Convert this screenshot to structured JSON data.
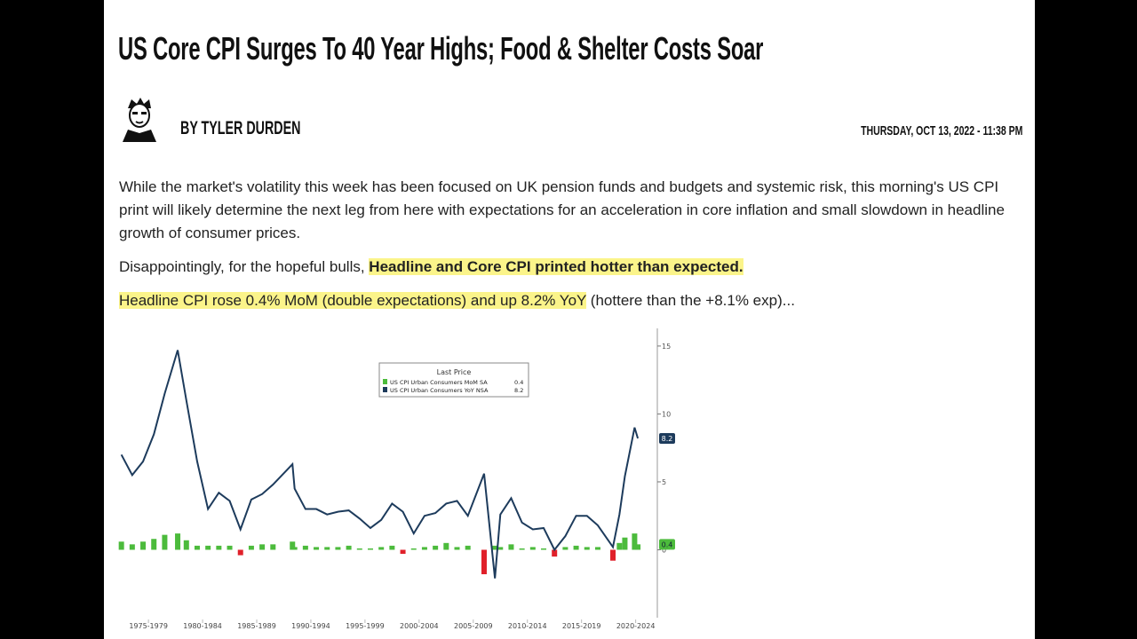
{
  "header": {
    "title": "US Core CPI Surges To 40 Year Highs; Food & Shelter Costs Soar",
    "author": "BY TYLER DURDEN",
    "date": "THURSDAY, OCT 13, 2022 - 11:38 PM"
  },
  "body": {
    "paragraphs": [
      {
        "parts": [
          "While the market's volatility this week has been focused on UK pension funds and budgets and systemic risk, this morning's US CPI print will likely determine the next leg from here with expectations for an acceleration in core inflation and small slowdown in headline growth of consumer prices."
        ]
      },
      {
        "parts": [
          "Disappointingly, for the hopeful bulls, ",
          "Headline and Core CPI printed hotter than expected."
        ]
      },
      {
        "parts": [
          "Headline CPI rose 0.4% MoM (double expectations) and up 8.2% YoY",
          " (hottere than the +8.1% exp)..."
        ]
      }
    ]
  },
  "chart_data": {
    "type": "combo",
    "legend_title": "Last Price",
    "x": [
      1975,
      1976,
      1977,
      1978,
      1979,
      1980.2,
      1981,
      1982,
      1983,
      1984,
      1985,
      1986,
      1987,
      1988,
      1989,
      1990.8,
      1991,
      1992,
      1993,
      1994,
      1995,
      1996,
      1997,
      1998,
      1999,
      2000,
      2001,
      2002,
      2003,
      2004,
      2005,
      2006,
      2007,
      2008.5,
      2009.5,
      2010,
      2011,
      2012,
      2013,
      2014,
      2015,
      2016,
      2017,
      2018,
      2019,
      2020.4,
      2021,
      2021.5,
      2022.4,
      2022.7
    ],
    "series": [
      {
        "name": "US CPI Urban Consumers MoM SA",
        "kind": "bar",
        "color": "#4cbb3c",
        "negative_color": "#e0202a",
        "values": [
          0.6,
          0.4,
          0.6,
          0.8,
          1.1,
          1.2,
          0.7,
          0.3,
          0.3,
          0.3,
          0.3,
          -0.4,
          0.3,
          0.4,
          0.4,
          0.6,
          0.2,
          0.3,
          0.2,
          0.2,
          0.2,
          0.3,
          0.1,
          0.1,
          0.2,
          0.3,
          -0.3,
          0.1,
          0.2,
          0.3,
          0.5,
          0.2,
          0.3,
          -1.8,
          0.3,
          0.2,
          0.4,
          0.1,
          0.2,
          0.1,
          -0.5,
          0.2,
          0.3,
          0.2,
          0.2,
          -0.8,
          0.5,
          0.9,
          1.2,
          0.4
        ]
      },
      {
        "name": "US CPI Urban Consumers YoY NSA",
        "kind": "line",
        "color": "#1d3b5c",
        "values": [
          7.0,
          5.5,
          6.5,
          8.5,
          11.5,
          14.7,
          11.0,
          6.5,
          3.0,
          4.2,
          3.6,
          1.5,
          3.7,
          4.1,
          4.8,
          6.3,
          4.5,
          3.0,
          3.0,
          2.6,
          2.8,
          2.9,
          2.3,
          1.6,
          2.2,
          3.4,
          2.8,
          1.2,
          2.5,
          2.7,
          3.4,
          3.6,
          2.5,
          5.6,
          -2.1,
          2.6,
          3.8,
          2.0,
          1.5,
          1.6,
          0.0,
          1.0,
          2.5,
          2.5,
          1.8,
          0.2,
          2.6,
          5.4,
          9.0,
          8.2
        ]
      }
    ],
    "xlim": [
      1974.7,
      2024.5
    ],
    "xticks": [
      {
        "value": 1977.5,
        "label": "1975-1979"
      },
      {
        "value": 1982.5,
        "label": "1980-1984"
      },
      {
        "value": 1987.5,
        "label": "1985-1989"
      },
      {
        "value": 1992.5,
        "label": "1990-1994"
      },
      {
        "value": 1997.5,
        "label": "1995-1999"
      },
      {
        "value": 2002.5,
        "label": "2000-2004"
      },
      {
        "value": 2007.5,
        "label": "2005-2009"
      },
      {
        "value": 2012.5,
        "label": "2010-2014"
      },
      {
        "value": 2017.5,
        "label": "2015-2019"
      },
      {
        "value": 2022.5,
        "label": "2020-2024"
      }
    ],
    "ylim": [
      -5,
      16.3
    ],
    "yticks": [
      0,
      5,
      10,
      15
    ]
  }
}
